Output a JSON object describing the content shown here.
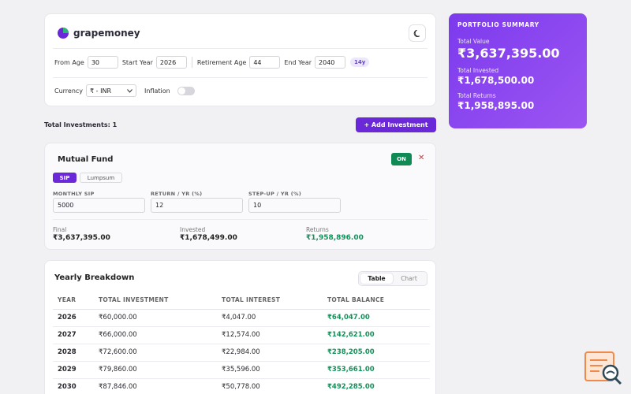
{
  "brand": {
    "name": "grapemoney"
  },
  "controls": {
    "from_age_label": "From Age",
    "from_age": "30",
    "start_year_label": "Start Year",
    "start_year": "2026",
    "retirement_age_label": "Retirement Age",
    "retirement_age": "44",
    "end_year_label": "End Year",
    "end_year": "2040",
    "years_badge": "14y",
    "currency_label": "Currency",
    "currency_value": "₹ - INR",
    "inflation_label": "Inflation"
  },
  "investments": {
    "total_label": "Total Investments: 1",
    "add_button": "+ Add Investment"
  },
  "fund": {
    "title": "Mutual Fund",
    "status": "ON",
    "close": "✕",
    "tab_sip": "SIP",
    "tab_lumpsum": "Lumpsum",
    "monthly_sip_label": "MONTHLY SIP",
    "monthly_sip": "5000",
    "return_label": "RETURN / YR (%)",
    "return_value": "12",
    "stepup_label": "STEP-UP / YR (%)",
    "stepup_value": "10",
    "final_label": "Final",
    "final_value": "₹3,637,395.00",
    "invested_label": "Invested",
    "invested_value": "₹1,678,499.00",
    "returns_label": "Returns",
    "returns_value": "₹1,958,896.00"
  },
  "summary": {
    "heading": "PORTFOLIO SUMMARY",
    "total_value_label": "Total Value",
    "total_value": "₹3,637,395.00",
    "total_invested_label": "Total Invested",
    "total_invested": "₹1,678,500.00",
    "total_returns_label": "Total Returns",
    "total_returns": "₹1,958,895.00"
  },
  "breakdown": {
    "title": "Yearly Breakdown",
    "view_table": "Table",
    "view_chart": "Chart",
    "columns": [
      "YEAR",
      "TOTAL INVESTMENT",
      "TOTAL INTEREST",
      "TOTAL BALANCE"
    ],
    "rows": [
      [
        "2026",
        "₹60,000.00",
        "₹4,047.00",
        "₹64,047.00"
      ],
      [
        "2027",
        "₹66,000.00",
        "₹12,574.00",
        "₹142,621.00"
      ],
      [
        "2028",
        "₹72,600.00",
        "₹22,984.00",
        "₹238,205.00"
      ],
      [
        "2029",
        "₹79,860.00",
        "₹35,596.00",
        "₹353,661.00"
      ],
      [
        "2030",
        "₹87,846.00",
        "₹50,778.00",
        "₹492,285.00"
      ]
    ]
  },
  "colors": {
    "accent": "#6b28d9",
    "positive": "#13915a",
    "danger": "#d23b3b"
  },
  "icons": {
    "theme": "moon-icon",
    "logo": "pie-chart-icon",
    "select": "chevron-down-icon"
  }
}
